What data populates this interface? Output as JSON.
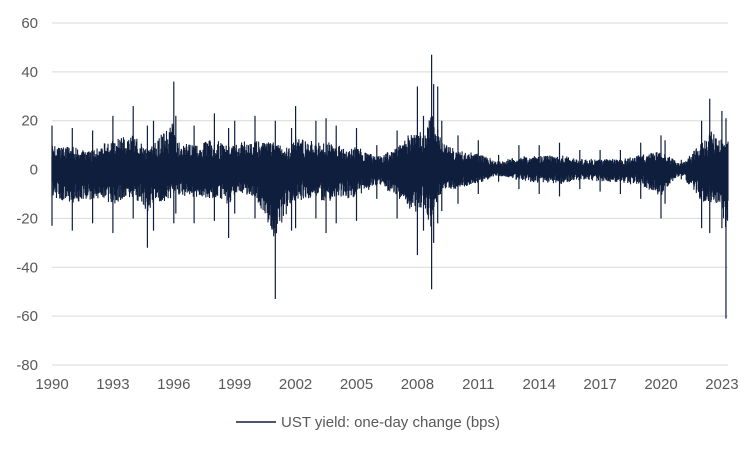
{
  "chart_data": {
    "type": "line",
    "title": "",
    "xlabel": "",
    "ylabel": "",
    "xlim": [
      1990,
      2023.3
    ],
    "ylim": [
      -80,
      60
    ],
    "grid": true,
    "legend_position": "bottom",
    "x_ticks": [
      "1990",
      "1993",
      "1996",
      "1999",
      "2002",
      "2005",
      "2008",
      "2011",
      "2014",
      "2017",
      "2020",
      "2023"
    ],
    "y_ticks": [
      "60",
      "40",
      "20",
      "0",
      "-20",
      "-40",
      "-60",
      "-80"
    ],
    "series": [
      {
        "name": "UST yield: one-day change (bps)",
        "color": "#0f1e3d",
        "x": [
          1990.0,
          1991.0,
          1992.0,
          1993.0,
          1994.0,
          1994.7,
          1995.0,
          1996.0,
          1996.1,
          1997.0,
          1998.0,
          1998.7,
          1999.0,
          2000.0,
          2001.0,
          2001.8,
          2002.0,
          2003.0,
          2003.5,
          2004.0,
          2005.0,
          2006.0,
          2007.0,
          2008.0,
          2008.3,
          2008.7,
          2008.8,
          2009.0,
          2009.2,
          2010.0,
          2011.0,
          2012.0,
          2013.0,
          2014.0,
          2015.0,
          2016.0,
          2017.0,
          2018.0,
          2019.0,
          2020.0,
          2020.2,
          2021.0,
          2022.0,
          2022.4,
          2023.0,
          2023.2
        ],
        "high": [
          18,
          17,
          16,
          22,
          26,
          18,
          20,
          36,
          22,
          18,
          23,
          17,
          20,
          22,
          20,
          17,
          26,
          20,
          21,
          18,
          17,
          10,
          16,
          34,
          22,
          47,
          35,
          34,
          20,
          14,
          12,
          6,
          10,
          10,
          11,
          8,
          8,
          8,
          11,
          14,
          12,
          4,
          20,
          29,
          24,
          21
        ],
        "low": [
          -23,
          -25,
          -22,
          -26,
          -20,
          -32,
          -25,
          -22,
          -18,
          -22,
          -21,
          -28,
          -18,
          -20,
          -53,
          -25,
          -24,
          -20,
          -26,
          -22,
          -21,
          -12,
          -20,
          -35,
          -25,
          -49,
          -30,
          -22,
          -17,
          -14,
          -10,
          -5,
          -8,
          -10,
          -11,
          -8,
          -9,
          -10,
          -12,
          -20,
          -14,
          -4,
          -24,
          -26,
          -24,
          -61
        ]
      }
    ]
  },
  "legend": {
    "label": "UST yield: one-day change (bps)"
  }
}
